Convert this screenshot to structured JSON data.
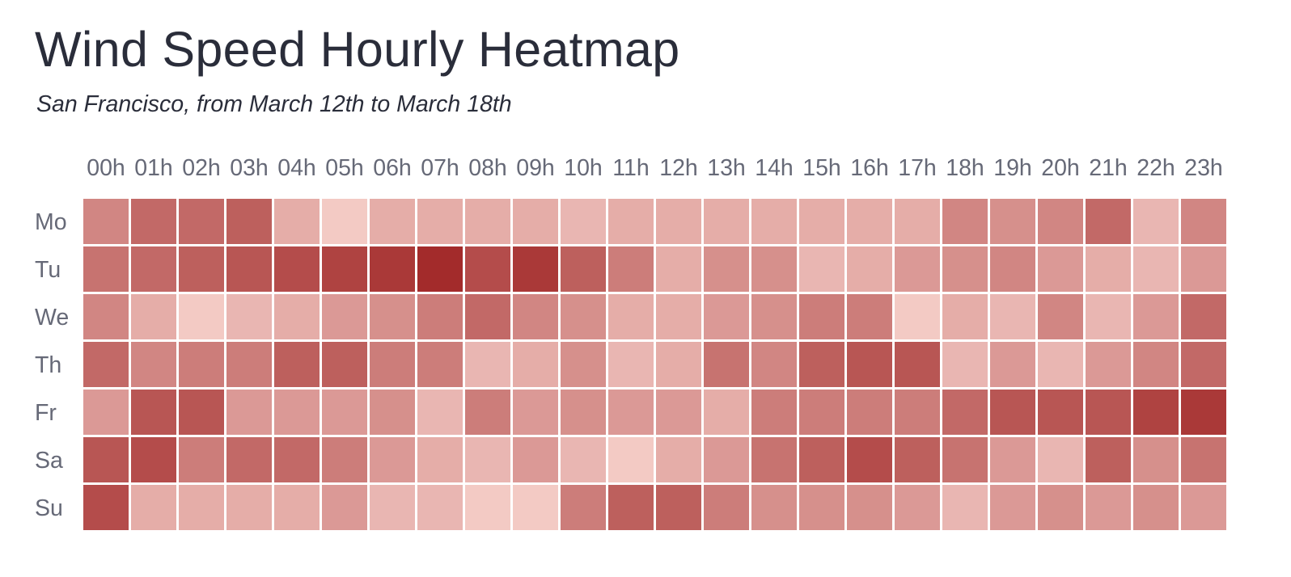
{
  "chart_data": {
    "type": "heatmap",
    "title": "Wind Speed Hourly Heatmap",
    "subtitle": "San Francisco, from March 12th to March 18th",
    "x_categories": [
      "00h",
      "01h",
      "02h",
      "03h",
      "04h",
      "05h",
      "06h",
      "07h",
      "08h",
      "09h",
      "10h",
      "11h",
      "12h",
      "13h",
      "14h",
      "15h",
      "16h",
      "17h",
      "18h",
      "19h",
      "20h",
      "21h",
      "22h",
      "23h"
    ],
    "y_categories": [
      "Mo",
      "Tu",
      "We",
      "Th",
      "Fr",
      "Sa",
      "Su"
    ],
    "values": [
      [
        0.45,
        0.6,
        0.6,
        0.65,
        0.25,
        0.1,
        0.25,
        0.25,
        0.25,
        0.25,
        0.2,
        0.25,
        0.25,
        0.25,
        0.25,
        0.25,
        0.25,
        0.25,
        0.45,
        0.4,
        0.45,
        0.6,
        0.2,
        0.45
      ],
      [
        0.55,
        0.6,
        0.65,
        0.7,
        0.75,
        0.8,
        0.85,
        0.92,
        0.75,
        0.85,
        0.65,
        0.5,
        0.25,
        0.4,
        0.4,
        0.2,
        0.25,
        0.35,
        0.4,
        0.45,
        0.35,
        0.25,
        0.2,
        0.35
      ],
      [
        0.45,
        0.25,
        0.1,
        0.2,
        0.25,
        0.35,
        0.4,
        0.5,
        0.6,
        0.45,
        0.4,
        0.25,
        0.25,
        0.35,
        0.4,
        0.5,
        0.5,
        0.1,
        0.25,
        0.2,
        0.45,
        0.2,
        0.35,
        0.6
      ],
      [
        0.6,
        0.45,
        0.5,
        0.5,
        0.65,
        0.65,
        0.5,
        0.5,
        0.2,
        0.25,
        0.4,
        0.2,
        0.25,
        0.55,
        0.45,
        0.65,
        0.7,
        0.7,
        0.2,
        0.35,
        0.2,
        0.35,
        0.45,
        0.6
      ],
      [
        0.35,
        0.7,
        0.7,
        0.35,
        0.35,
        0.35,
        0.4,
        0.2,
        0.5,
        0.35,
        0.4,
        0.35,
        0.35,
        0.25,
        0.5,
        0.5,
        0.5,
        0.5,
        0.6,
        0.7,
        0.7,
        0.7,
        0.8,
        0.85
      ],
      [
        0.7,
        0.75,
        0.5,
        0.6,
        0.6,
        0.5,
        0.35,
        0.25,
        0.2,
        0.35,
        0.2,
        0.1,
        0.25,
        0.35,
        0.55,
        0.65,
        0.75,
        0.65,
        0.55,
        0.35,
        0.2,
        0.65,
        0.4,
        0.55
      ],
      [
        0.75,
        0.25,
        0.25,
        0.25,
        0.25,
        0.35,
        0.2,
        0.2,
        0.1,
        0.1,
        0.5,
        0.65,
        0.65,
        0.5,
        0.4,
        0.4,
        0.4,
        0.35,
        0.2,
        0.35,
        0.4,
        0.35,
        0.4,
        0.35
      ]
    ],
    "value_range": [
      0,
      1
    ],
    "color_scale": {
      "low": "#fdddd7",
      "high": "#9b1c1c"
    },
    "legend": "none",
    "grid": false
  }
}
